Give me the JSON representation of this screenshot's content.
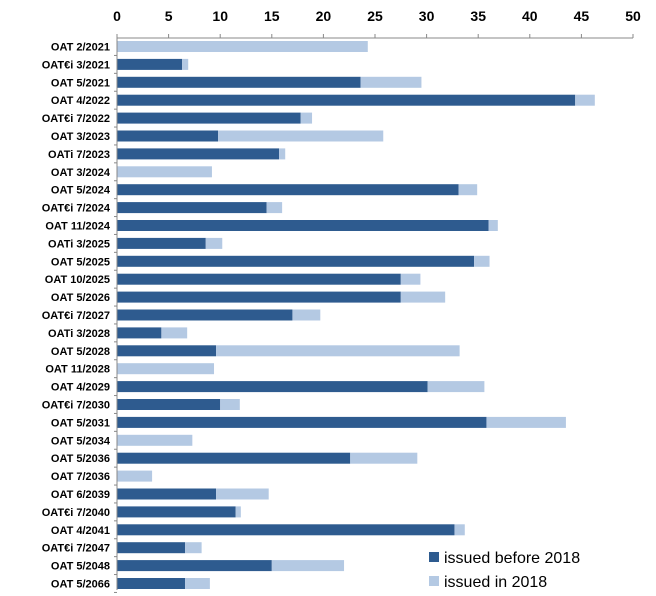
{
  "chart_data": {
    "type": "bar",
    "orientation": "horizontal",
    "stacked": true,
    "categories": [
      "OAT 2/2021",
      "OAT€i 3/2021",
      "OAT 5/2021",
      "OAT 4/2022",
      "OAT€i 7/2022",
      "OAT 3/2023",
      "OATi 7/2023",
      "OAT 3/2024",
      "OAT 5/2024",
      "OAT€i 7/2024",
      "OAT 11/2024",
      "OATi 3/2025",
      "OAT 5/2025",
      "OAT 10/2025",
      "OAT 5/2026",
      "OAT€i 7/2027",
      "OATi 3/2028",
      "OAT 5/2028",
      "OAT 11/2028",
      "OAT 4/2029",
      "OAT€i 7/2030",
      "OAT 5/2031",
      "OAT 5/2034",
      "OAT 5/2036",
      "OAT 7/2036",
      "OAT 6/2039",
      "OAT€i 7/2040",
      "OAT 4/2041",
      "OAT€i 7/2047",
      "OAT 5/2048",
      "OAT 5/2066"
    ],
    "series": [
      {
        "name": "issued before 2018",
        "color": "#2e5b8f",
        "values": [
          0,
          6.3,
          23.6,
          44.4,
          17.8,
          9.8,
          15.7,
          0,
          33.1,
          14.5,
          36.0,
          8.6,
          34.6,
          27.5,
          27.5,
          17.0,
          4.3,
          9.6,
          0,
          30.1,
          10.0,
          35.8,
          0,
          22.6,
          0,
          9.6,
          11.5,
          32.7,
          6.6,
          15.0,
          6.6
        ]
      },
      {
        "name": "issued in 2018",
        "color": "#b4c9e3",
        "values": [
          24.3,
          0.6,
          5.9,
          1.9,
          1.1,
          16.0,
          0.6,
          9.2,
          1.8,
          1.5,
          0.9,
          1.6,
          1.5,
          1.9,
          4.3,
          2.7,
          2.5,
          23.6,
          9.4,
          5.5,
          1.9,
          7.7,
          7.3,
          6.5,
          3.4,
          5.1,
          0.5,
          1.0,
          1.6,
          7.0,
          2.4
        ]
      }
    ],
    "xlim": [
      0,
      50
    ],
    "x_ticks": [
      "0",
      "5",
      "10",
      "15",
      "20",
      "25",
      "30",
      "35",
      "40",
      "45",
      "50"
    ],
    "x_axis_position": "top",
    "grid": false,
    "legend_position": "bottom-right",
    "title": "",
    "xlabel": "",
    "ylabel": ""
  }
}
